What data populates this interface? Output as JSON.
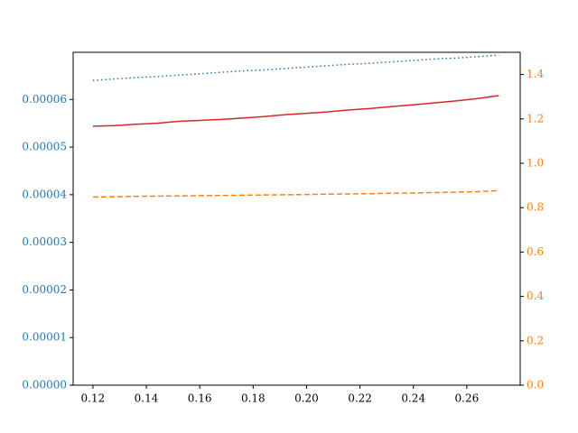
{
  "chart_data": {
    "type": "line",
    "x": [
      0.12,
      0.128,
      0.136,
      0.144,
      0.152,
      0.16,
      0.168,
      0.176,
      0.184,
      0.192,
      0.2,
      0.208,
      0.216,
      0.224,
      0.232,
      0.24,
      0.248,
      0.256,
      0.264,
      0.272
    ],
    "series": [
      {
        "color": "#1f77b4",
        "style": "dotted",
        "axis": "y",
        "values": [
          6.4e-05,
          6.43e-05,
          6.46e-05,
          6.48e-05,
          6.51e-05,
          6.54e-05,
          6.57e-05,
          6.6e-05,
          6.62e-05,
          6.65e-05,
          6.68e-05,
          6.71e-05,
          6.74e-05,
          6.76e-05,
          6.79e-05,
          6.82e-05,
          6.85e-05,
          6.87e-05,
          6.9e-05,
          6.93e-05
        ]
      },
      {
        "color": "#d62728",
        "style": "solid",
        "axis": "y",
        "values": [
          5.44e-05,
          5.45e-05,
          5.48e-05,
          5.5e-05,
          5.54e-05,
          5.56e-05,
          5.58e-05,
          5.61e-05,
          5.64e-05,
          5.68e-05,
          5.71e-05,
          5.74e-05,
          5.78e-05,
          5.81e-05,
          5.85e-05,
          5.89e-05,
          5.93e-05,
          5.97e-05,
          6.02e-05,
          6.08e-05
        ]
      },
      {
        "color": "#ff7f0e",
        "style": "dashed",
        "axis": "y2",
        "values": [
          0.848,
          0.849,
          0.851,
          0.852,
          0.853,
          0.854,
          0.855,
          0.856,
          0.857,
          0.858,
          0.859,
          0.861,
          0.862,
          0.863,
          0.865,
          0.866,
          0.868,
          0.87,
          0.872,
          0.877
        ]
      }
    ],
    "xlim": [
      0.1126,
      0.28
    ],
    "xticks": [
      0.12,
      0.14,
      0.16,
      0.18,
      {
        "value": 0.2,
        "label": "0.20"
      },
      0.22,
      0.24,
      0.26
    ],
    "ylim": [
      0,
      6.99e-05
    ],
    "yticks": [
      {
        "value": 0,
        "label": "0.00000"
      },
      1e-05,
      2e-05,
      3e-05,
      4e-05,
      5e-05,
      6e-05
    ],
    "y_color": "#1f77b4",
    "y2lim": [
      0,
      1.5
    ],
    "y2ticks": [
      {
        "value": 0,
        "label": "0.0"
      },
      0.2,
      0.4,
      0.6,
      0.8,
      {
        "value": 1,
        "label": "1.0"
      },
      1.2,
      1.4
    ],
    "y2_color": "#ff7f0e"
  }
}
